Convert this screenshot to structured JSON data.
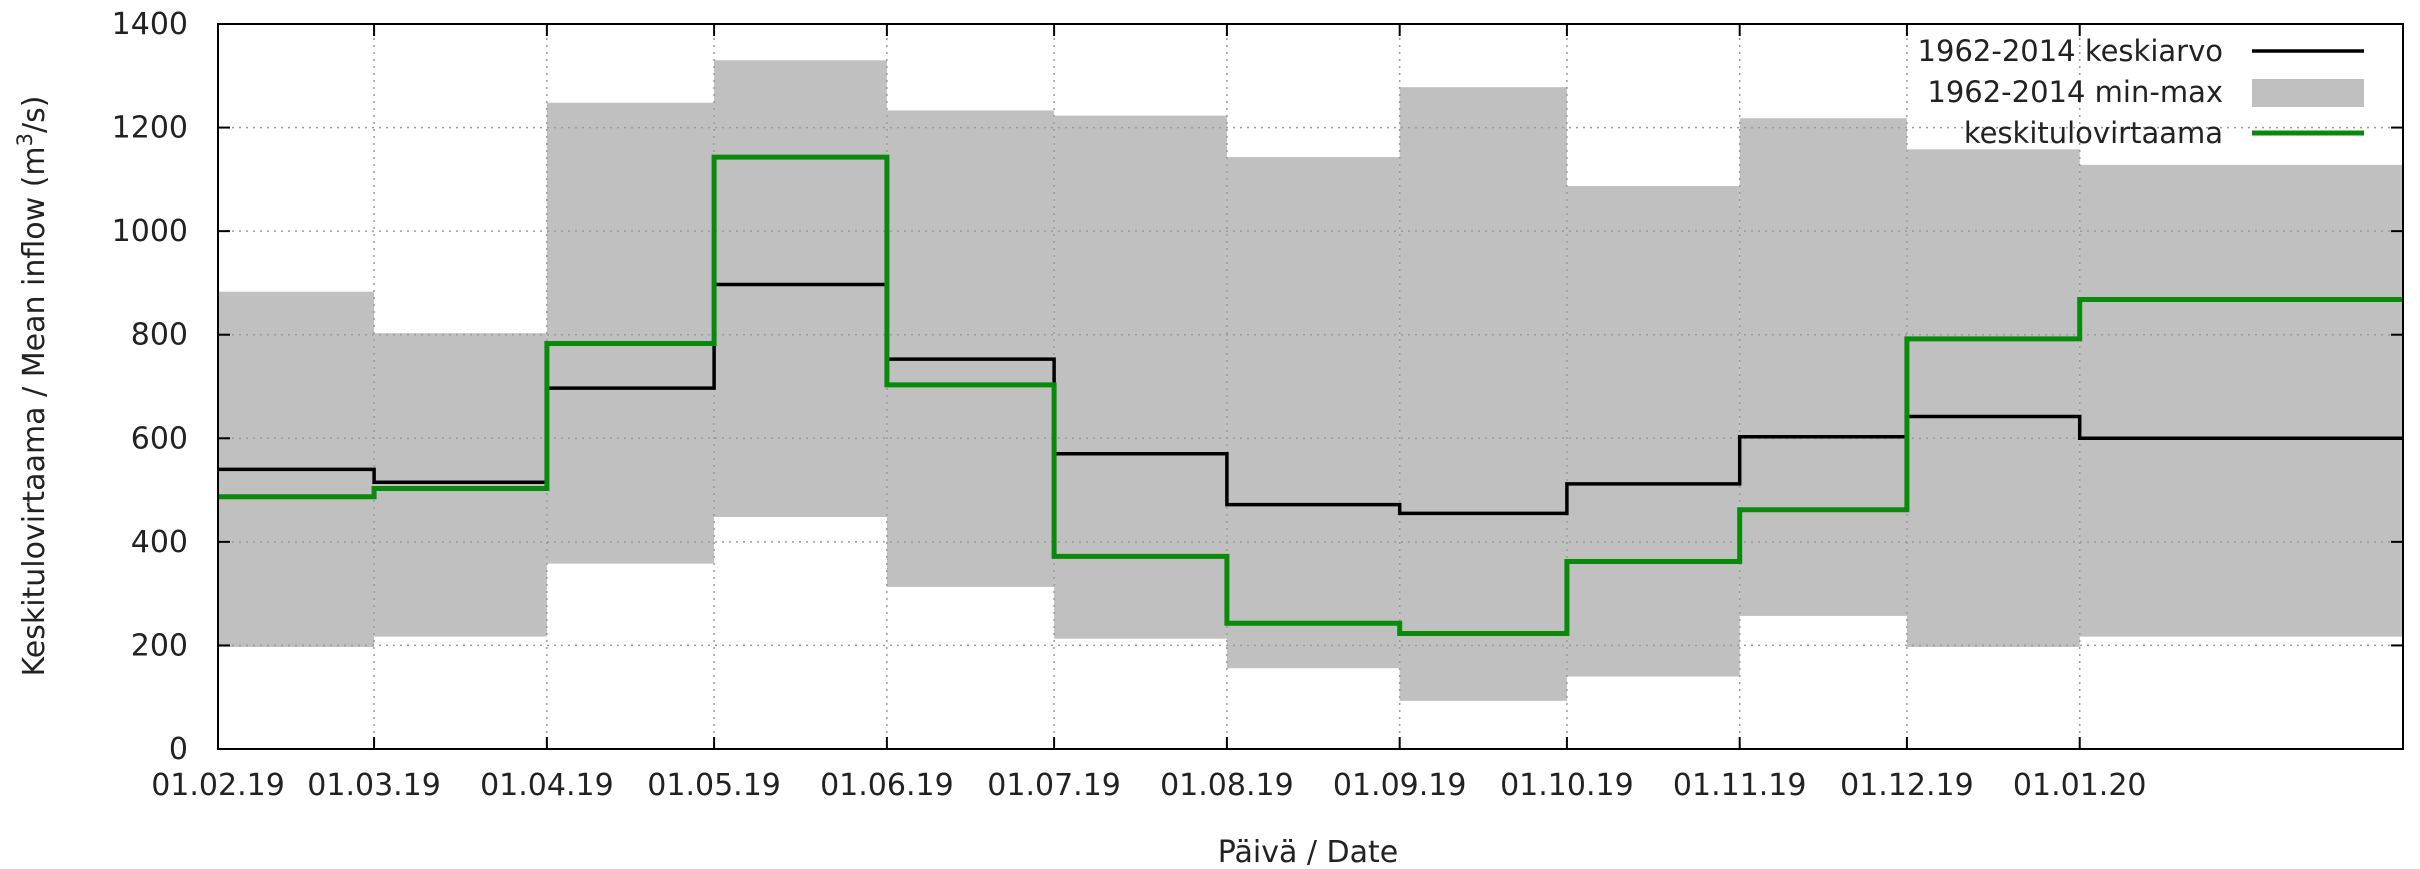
{
  "chart_data": {
    "type": "line",
    "xlabel": "Päivä / Date",
    "ylabel_text": "Keskitulovirtaama / Mean inflow (m",
    "ylabel_sup": "3",
    "ylabel_tail": "/s)",
    "ylim": [
      0,
      1400
    ],
    "yticks": [
      0,
      200,
      400,
      600,
      800,
      1000,
      1200,
      1400
    ],
    "xlim": [
      "01.02.19",
      "28.02.20"
    ],
    "xticks": [
      "01.02.19",
      "01.03.19",
      "01.04.19",
      "01.05.19",
      "01.06.19",
      "01.07.19",
      "01.08.19",
      "01.09.19",
      "01.10.19",
      "01.11.19",
      "01.12.19",
      "01.01.20"
    ],
    "grid": true,
    "legend_position": "top-right",
    "months": [
      "02.19",
      "03.19",
      "04.19",
      "05.19",
      "06.19",
      "07.19",
      "08.19",
      "09.19",
      "10.19",
      "11.19",
      "12.19",
      "01.20",
      "02.20"
    ],
    "series": [
      {
        "name": "1962-2014 keskiarvo",
        "color": "#000000",
        "values": [
          540,
          515,
          697,
          897,
          753,
          570,
          472,
          455,
          512,
          603,
          642,
          600,
          600
        ]
      },
      {
        "name": "1962-2014 min-max",
        "color": "#c0c0c0",
        "band": true,
        "min": [
          197,
          217,
          358,
          448,
          313,
          213,
          156,
          93,
          140,
          257,
          197,
          217,
          217
        ],
        "max": [
          883,
          803,
          1248,
          1330,
          1233,
          1223,
          1143,
          1278,
          1087,
          1218,
          1158,
          1128,
          1128
        ]
      },
      {
        "name": "keskitulovirtaama",
        "color": "#0a8a0a",
        "values": [
          487,
          503,
          783,
          1143,
          703,
          372,
          243,
          223,
          362,
          462,
          792,
          868,
          868
        ]
      }
    ]
  }
}
